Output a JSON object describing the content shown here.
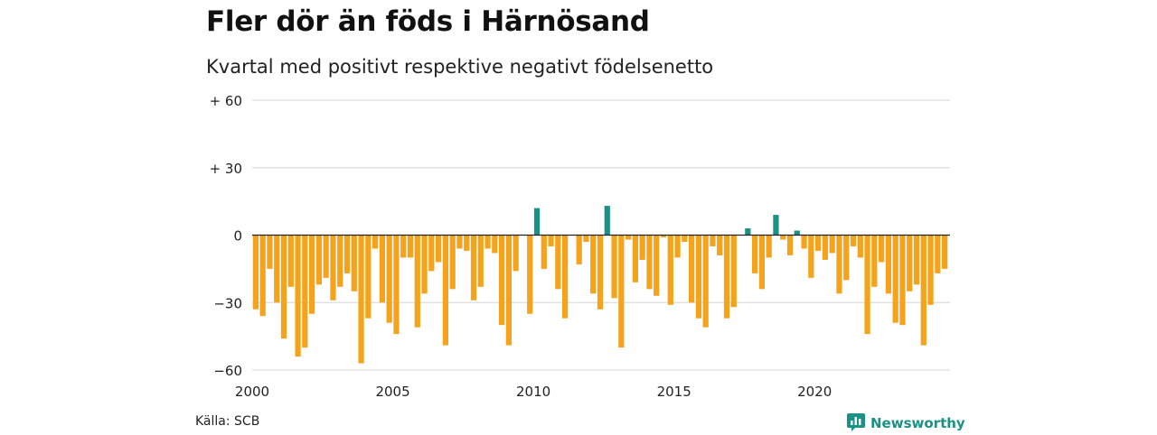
{
  "header": {
    "title": "Fler dör än föds i Härnösand",
    "subtitle": "Kvartal med positivt respektive negativt födelsenetto"
  },
  "footer": {
    "source": "Källa: SCB",
    "brand": "Newsworthy"
  },
  "colors": {
    "positive": "#1a9184",
    "negative": "#f5a31a",
    "grid": "#dddddd",
    "zero_line": "#222222",
    "brand": "#1a9184"
  },
  "chart_data": {
    "type": "bar",
    "title": "Fler dör än föds i Härnösand",
    "subtitle": "Kvartal med positivt respektive negativt födelsenetto",
    "xlabel": "",
    "ylabel": "",
    "ylim": [
      -60,
      60
    ],
    "y_ticks": [
      60,
      30,
      0,
      -30,
      -60
    ],
    "y_tick_labels": [
      "+ 60",
      "+ 30",
      "0",
      "−30",
      "−60"
    ],
    "x_ticks": [
      2000,
      2005,
      2010,
      2015,
      2020
    ],
    "x_tick_labels": [
      "2000",
      "2005",
      "2010",
      "2015",
      "2020"
    ],
    "x_range": [
      2000,
      2024.75
    ],
    "grid": true,
    "first_quarter": "2000 Q1",
    "values": [
      -33,
      -36,
      -15,
      -30,
      -46,
      -23,
      -54,
      -50,
      -35,
      -22,
      -19,
      -29,
      -23,
      -17,
      -25,
      -57,
      -37,
      -6,
      -30,
      -39,
      -44,
      -10,
      -10,
      -41,
      -26,
      -16,
      -12,
      -49,
      -24,
      -6,
      -7,
      -29,
      -23,
      -6,
      -8,
      -40,
      -49,
      -16,
      0,
      -35,
      12,
      -15,
      -5,
      -24,
      -37,
      0,
      -13,
      -3,
      -26,
      -33,
      13,
      -28,
      -50,
      -2,
      -21,
      -11,
      -24,
      -27,
      -1,
      -31,
      -10,
      -3,
      -30,
      -37,
      -41,
      -5,
      -9,
      -37,
      -32,
      0,
      3,
      -17,
      -24,
      -10,
      9,
      -2,
      -9,
      2,
      -6,
      -19,
      -7,
      -11,
      -8,
      -26,
      -20,
      -5,
      -10,
      -44,
      -23,
      -12,
      -26,
      -39,
      -40,
      -25,
      -22,
      -49,
      -31,
      -17,
      -15
    ]
  }
}
